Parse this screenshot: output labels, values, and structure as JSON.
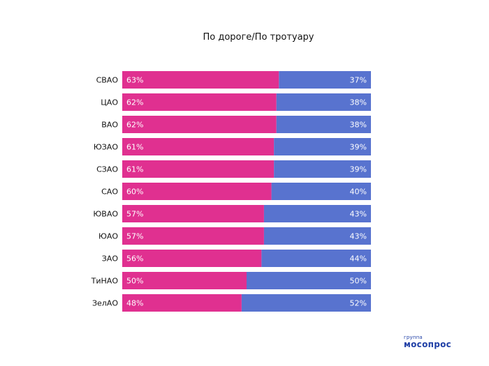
{
  "chart_data": {
    "type": "bar",
    "orientation": "horizontal",
    "stacked": true,
    "percent": true,
    "title": "По дороге/По тротуару",
    "xlim": [
      0,
      100
    ],
    "grid": false,
    "categories": [
      "СВАО",
      "ЦАО",
      "ВАО",
      "ЮЗАО",
      "СЗАО",
      "САО",
      "ЮВАО",
      "ЮАО",
      "ЗАО",
      "ТиНАО",
      "ЗелАО"
    ],
    "series": [
      {
        "color": "#e03090",
        "values": [
          63,
          62,
          62,
          61,
          61,
          60,
          57,
          57,
          56,
          50,
          48
        ],
        "labels": [
          "63%",
          "62%",
          "62%",
          "61%",
          "61%",
          "60%",
          "57%",
          "57%",
          "56%",
          "50%",
          "48%"
        ]
      },
      {
        "color": "#5873cf",
        "values": [
          37,
          38,
          38,
          39,
          39,
          40,
          43,
          43,
          44,
          50,
          52
        ],
        "labels": [
          "37%",
          "38%",
          "38%",
          "39%",
          "39%",
          "40%",
          "43%",
          "43%",
          "44%",
          "50%",
          "52%"
        ]
      }
    ]
  },
  "logo": {
    "small_text": "группа",
    "big_text": "мосопрос",
    "color": "#1f3fa6"
  }
}
